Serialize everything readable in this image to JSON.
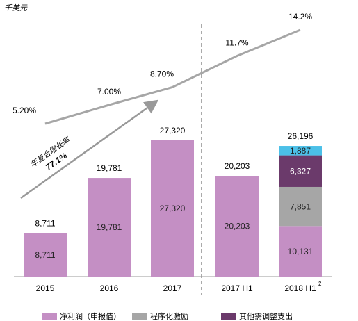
{
  "chart_data": {
    "type": "bar",
    "unit_label": "千美元",
    "categories": [
      "2015",
      "2016",
      "2017",
      "2017 H1",
      "2018 H1"
    ],
    "category_notes": [
      null,
      null,
      null,
      null,
      "2"
    ],
    "series": [
      {
        "name": "净利润（申报值）",
        "color": "#c48fc4",
        "values": [
          8711,
          19781,
          27320,
          20203,
          10131
        ],
        "value_labels": [
          "8,711",
          "19,781",
          "27,320",
          "20,203",
          "10,131"
        ]
      },
      {
        "name": "程序化激励",
        "color": "#a6a6a6",
        "values": [
          null,
          null,
          null,
          null,
          7851
        ],
        "value_labels": [
          null,
          null,
          null,
          null,
          "7,851"
        ]
      },
      {
        "name": "其他需调整支出",
        "color": "#6b3a6b",
        "values": [
          null,
          null,
          null,
          null,
          6327
        ],
        "value_labels": [
          null,
          null,
          null,
          null,
          "6,327"
        ]
      },
      {
        "color": "#4bc0e8",
        "values": [
          null,
          null,
          null,
          null,
          1887
        ],
        "value_labels": [
          null,
          null,
          null,
          null,
          "1,887"
        ]
      }
    ],
    "totals": {
      "values": [
        8711,
        19781,
        27320,
        20203,
        26196
      ],
      "value_labels": [
        "8,711",
        "19,781",
        "27,320",
        "20,203",
        "26,196"
      ]
    },
    "line": {
      "color": "#a6a6a6",
      "values": [
        5.2,
        7.0,
        8.7,
        11.7,
        14.2
      ],
      "value_labels": [
        "5.20%",
        "7.00%",
        "8.70%",
        "11.7%",
        "14.2%"
      ]
    },
    "annotation": [
      "年复合增长率",
      "77.1%"
    ],
    "ylim": [
      0,
      40000
    ],
    "y2lim": [
      0,
      16
    ]
  }
}
